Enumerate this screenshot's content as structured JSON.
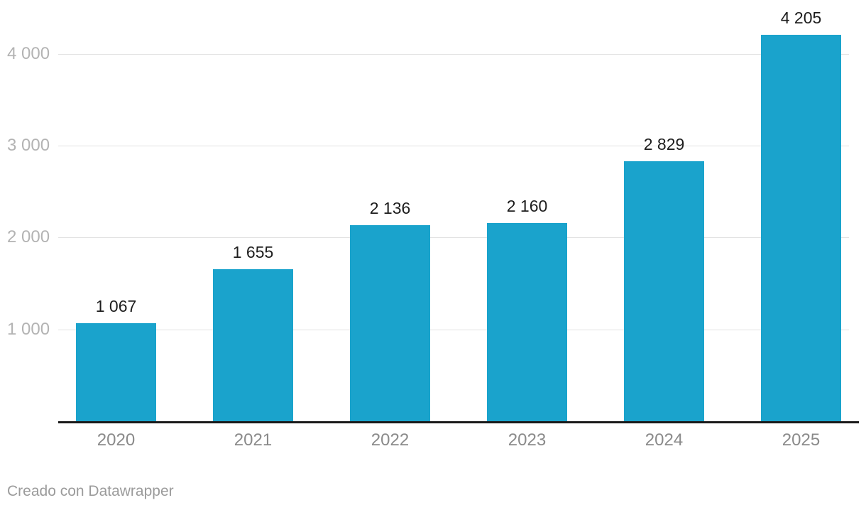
{
  "chart_data": {
    "type": "bar",
    "title": "",
    "xlabel": "",
    "ylabel": "",
    "categories": [
      "2020",
      "2021",
      "2022",
      "2023",
      "2024",
      "2025"
    ],
    "values": [
      1067,
      1655,
      2136,
      2160,
      2829,
      4205
    ],
    "value_labels": [
      "1 067",
      "1 655",
      "2 136",
      "2 160",
      "2 829",
      "4 205"
    ],
    "y_ticks": [
      {
        "value": 1000,
        "label": "1 000"
      },
      {
        "value": 2000,
        "label": "2 000"
      },
      {
        "value": 3000,
        "label": "3 000"
      },
      {
        "value": 4000,
        "label": "4 000"
      }
    ],
    "ylim": [
      0,
      4400
    ],
    "grid": "horizontal",
    "legend": "none"
  },
  "colors": {
    "bar": "#1aa3cc",
    "gridline": "#e2e2e2",
    "axis_line": "#1a1a1a",
    "value_label": "#1d1d1d",
    "x_tick_label": "#8a8a8a",
    "y_tick_label": "#b3b3b3",
    "credit": "#9b9b9b",
    "background": "#ffffff"
  },
  "footer": {
    "credit": "Creado con Datawrapper"
  }
}
